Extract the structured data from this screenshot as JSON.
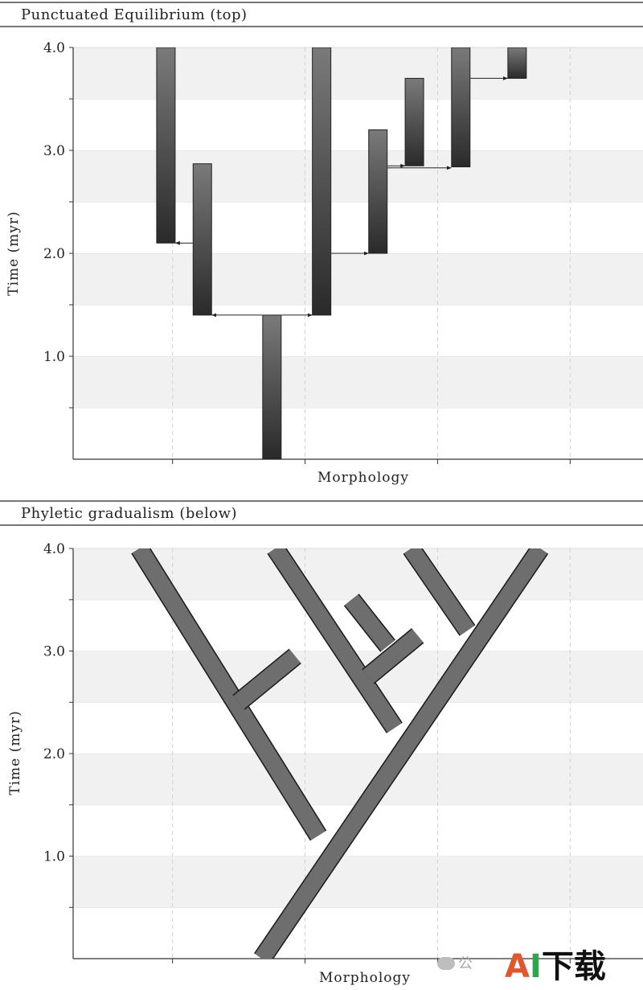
{
  "chart_data": [
    {
      "type": "bar",
      "title": "Punctuated Equilibrium (top)",
      "xlabel": "Morphology",
      "ylabel": "Time (myr)",
      "ylim": [
        0,
        4.0
      ],
      "yticks": [
        "1.0",
        "2.0",
        "3.0",
        "4.0"
      ],
      "grid": "horizontal bands",
      "lineages": [
        {
          "x": 1.9,
          "start": 2.1,
          "end": 4.0
        },
        {
          "x": 2.45,
          "start": 1.4,
          "end": 2.87
        },
        {
          "x": 3.5,
          "start": 0.0,
          "end": 1.4
        },
        {
          "x": 4.25,
          "start": 1.4,
          "end": 4.0
        },
        {
          "x": 5.1,
          "start": 2.0,
          "end": 3.2
        },
        {
          "x": 5.65,
          "start": 2.85,
          "end": 3.7
        },
        {
          "x": 6.35,
          "start": 2.84,
          "end": 4.0
        },
        {
          "x": 7.2,
          "start": 3.7,
          "end": 4.0
        }
      ],
      "speciation_events": [
        {
          "from": 2.45,
          "to": 1.9,
          "t": 2.1
        },
        {
          "from": 3.5,
          "to": 2.45,
          "t": 1.4
        },
        {
          "from": 3.5,
          "to": 4.25,
          "t": 1.4
        },
        {
          "from": 4.25,
          "to": 5.1,
          "t": 2.0
        },
        {
          "from": 5.1,
          "to": 5.65,
          "t": 2.85
        },
        {
          "from": 5.1,
          "to": 6.35,
          "t": 2.83
        },
        {
          "from": 6.35,
          "to": 7.2,
          "t": 3.7
        }
      ]
    },
    {
      "type": "line",
      "title": "Phyletic gradualism (below)",
      "xlabel": "Morphology",
      "ylabel": "Time (myr)",
      "ylim": [
        0,
        4.0
      ],
      "yticks": [
        "1.0",
        "2.0",
        "3.0",
        "4.0"
      ],
      "grid": "horizontal bands",
      "branches": [
        {
          "from": [
            3.35,
            0.0
          ],
          "to": [
            7.55,
            4.0
          ]
        },
        {
          "from": [
            4.2,
            1.2
          ],
          "to": [
            1.5,
            4.0
          ]
        },
        {
          "from": [
            3.0,
            2.5
          ],
          "to": [
            3.85,
            2.95
          ]
        },
        {
          "from": [
            5.35,
            2.25
          ],
          "to": [
            3.55,
            4.0
          ]
        },
        {
          "from": [
            4.95,
            2.75
          ],
          "to": [
            5.7,
            3.15
          ]
        },
        {
          "from": [
            5.25,
            3.05
          ],
          "to": [
            4.7,
            3.5
          ]
        },
        {
          "from": [
            6.45,
            3.2
          ],
          "to": [
            5.6,
            4.0
          ]
        }
      ]
    }
  ],
  "watermark": {
    "wechat_text": "公",
    "brand_a": "A",
    "brand_i": "I",
    "brand_rest": "下载"
  }
}
